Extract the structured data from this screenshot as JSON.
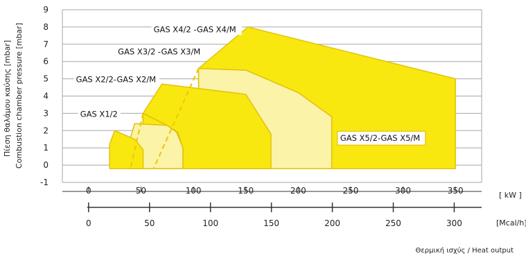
{
  "chart_data": {
    "type": "area",
    "title": "",
    "ylabel_lines": [
      "Πίεση θαλάμου καύσης [mbar]",
      "Combustion chamber pressure [mbar]"
    ],
    "xlabel": "Θερμική ισχύς / Heat output",
    "kw_axis": {
      "unit": "[ kW ]",
      "ticks": [
        0,
        50,
        100,
        150,
        200,
        250,
        300,
        350
      ],
      "range": [
        -25,
        375
      ]
    },
    "mcal_axis": {
      "unit": "[Mcal/h]",
      "ticks": [
        0,
        50,
        100,
        150,
        200,
        250,
        300
      ],
      "range": [
        -21.5,
        322.5
      ]
    },
    "y_ticks": [
      -1,
      0,
      1,
      2,
      3,
      4,
      5,
      6,
      7,
      8,
      9
    ],
    "ylim": [
      -1,
      9
    ],
    "colors": {
      "light": "#fbf3a8",
      "strong": "#f9e80f",
      "outline": "#e3c10c",
      "dashed": "#f2c60a",
      "grid": "#a6a6a6"
    },
    "series": [
      {
        "name": "GAS X5/2-GAS X5/M",
        "fill": "strong",
        "points": [
          [
            105,
            -0.2
          ],
          [
            105,
            5.6
          ],
          [
            152,
            8.0
          ],
          [
            350,
            5.0
          ],
          [
            350,
            -0.2
          ],
          [
            232,
            -0.2
          ],
          [
            232,
            2.8
          ],
          [
            200,
            4.2
          ],
          [
            150,
            5.5
          ],
          [
            105,
            5.6
          ]
        ],
        "dashed": [
          [
            105,
            5.6
          ],
          [
            62,
            -0.2
          ]
        ]
      },
      {
        "name": "GAS X4/2 -GAS X4/M",
        "fill": "light",
        "points": [
          [
            105,
            -0.2
          ],
          [
            105,
            5.6
          ],
          [
            150,
            5.5
          ],
          [
            200,
            4.2
          ],
          [
            232,
            2.8
          ],
          [
            232,
            -0.2
          ]
        ]
      },
      {
        "name": "GAS X4/2 -GAS X4/M",
        "fill": "strong",
        "points": [
          [
            52,
            -0.2
          ],
          [
            52,
            3.0
          ],
          [
            70,
            4.7
          ],
          [
            150,
            4.1
          ],
          [
            174,
            1.8
          ],
          [
            174,
            -0.2
          ],
          [
            90,
            -0.2
          ],
          [
            90,
            1.0
          ],
          [
            85,
            1.9
          ],
          [
            75,
            2.3
          ],
          [
            52,
            3.0
          ]
        ],
        "dashed": [
          [
            52,
            3.0
          ],
          [
            40,
            -0.2
          ]
        ]
      },
      {
        "name": "GAS X3/2 -GAS X3/M",
        "fill": "light",
        "points": [
          [
            52,
            -0.2
          ],
          [
            52,
            3.0
          ],
          [
            75,
            2.3
          ],
          [
            85,
            1.9
          ],
          [
            90,
            1.0
          ],
          [
            90,
            -0.2
          ]
        ]
      },
      {
        "name": "GAS X3/2 -GAS X3/M",
        "fill": "strong",
        "points": [
          [
            37,
            -0.2
          ],
          [
            37,
            1.0
          ],
          [
            44,
            2.4
          ],
          [
            75,
            2.3
          ],
          [
            52,
            3.0
          ],
          [
            52,
            -0.2
          ]
        ]
      },
      {
        "name": "GAS X2/2-GAS X2/M",
        "fill": "light",
        "points": [
          [
            37,
            -0.2
          ],
          [
            37,
            1.0
          ],
          [
            44,
            2.4
          ],
          [
            75,
            2.3
          ],
          [
            84,
            1.9
          ],
          [
            90,
            1.0
          ],
          [
            90,
            -0.2
          ]
        ]
      },
      {
        "name": "GAS X1/2",
        "fill": "strong",
        "points": [
          [
            20,
            -0.2
          ],
          [
            20,
            1.2
          ],
          [
            25,
            2.0
          ],
          [
            44,
            1.5
          ],
          [
            52,
            0.9
          ],
          [
            52,
            -0.2
          ]
        ]
      }
    ],
    "labels": [
      {
        "text": "GAS X4/2 -GAS X4/M",
        "x": 62,
        "y": 7.7,
        "box": false
      },
      {
        "text": "GAS X3/2 -GAS X3/M",
        "x": 28,
        "y": 6.4,
        "box": false
      },
      {
        "text": "GAS X2/2-GAS X2/M",
        "x": -12,
        "y": 4.8,
        "box": false
      },
      {
        "text": "GAS X1/2",
        "x": -8,
        "y": 2.8,
        "box": false
      },
      {
        "text": "GAS X5/2-GAS X5/M",
        "x": 240,
        "y": 1.4,
        "box": true
      }
    ]
  }
}
